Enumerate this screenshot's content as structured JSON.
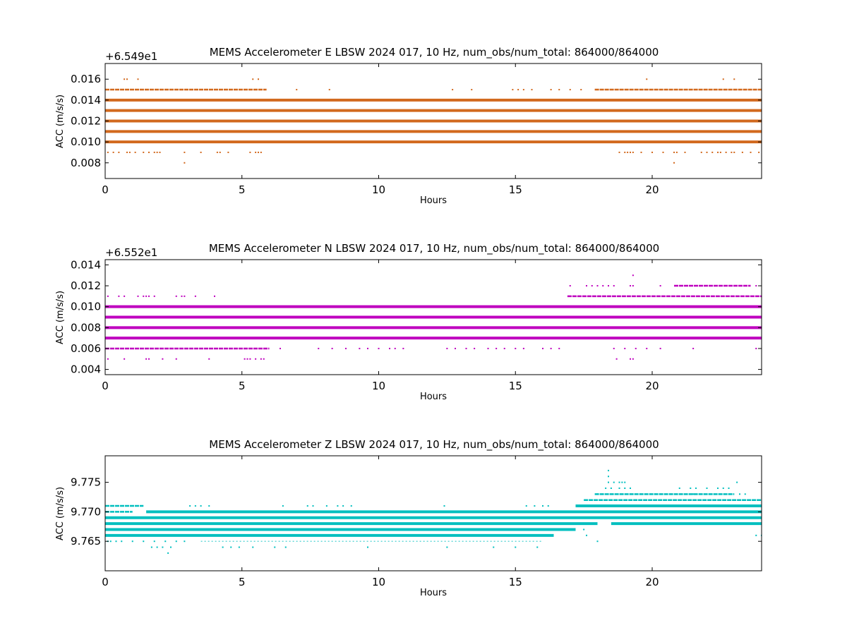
{
  "chart_data": [
    {
      "type": "scatter",
      "title": "MEMS Accelerometer E LBSW 2024 017, 10 Hz, num_obs/num_total: 864000/864000",
      "xlabel": "Hours",
      "ylabel": "ACC (m/s/s)",
      "y_offset_label": "+6.549e1",
      "y_offset": 65.49,
      "xlim": [
        0,
        24
      ],
      "ylim": [
        0.0065,
        0.0175
      ],
      "x_ticks": [
        0,
        5,
        10,
        15,
        20
      ],
      "y_ticks": [
        "0.008",
        "0.010",
        "0.012",
        "0.014",
        "0.016"
      ],
      "y_tick_values": [
        0.008,
        0.01,
        0.012,
        0.014,
        0.016
      ],
      "color": "#d2691e",
      "bands": [
        {
          "y": 0.01,
          "x": [
            0,
            24
          ],
          "density": "dense"
        },
        {
          "y": 0.011,
          "x": [
            0,
            24
          ],
          "density": "dense"
        },
        {
          "y": 0.012,
          "x": [
            0,
            24
          ],
          "density": "dense"
        },
        {
          "y": 0.013,
          "x": [
            0,
            24
          ],
          "density": "dense"
        },
        {
          "y": 0.014,
          "x": [
            0,
            24
          ],
          "density": "dense"
        },
        {
          "y": 0.015,
          "x": [
            0,
            5.9
          ],
          "density": "medium"
        },
        {
          "y": 0.015,
          "x": [
            17.9,
            24
          ],
          "density": "medium"
        }
      ],
      "points": [
        [
          0.7,
          0.016
        ],
        [
          0.8,
          0.016
        ],
        [
          1.2,
          0.016
        ],
        [
          5.4,
          0.016
        ],
        [
          5.6,
          0.016
        ],
        [
          19.8,
          0.016
        ],
        [
          22.6,
          0.016
        ],
        [
          23.0,
          0.016
        ],
        [
          7.0,
          0.015
        ],
        [
          8.2,
          0.015
        ],
        [
          12.7,
          0.015
        ],
        [
          13.4,
          0.015
        ],
        [
          14.9,
          0.015
        ],
        [
          15.1,
          0.015
        ],
        [
          15.3,
          0.015
        ],
        [
          15.6,
          0.015
        ],
        [
          16.3,
          0.015
        ],
        [
          16.6,
          0.015
        ],
        [
          17.0,
          0.015
        ],
        [
          17.4,
          0.015
        ],
        [
          0.1,
          0.009
        ],
        [
          0.3,
          0.009
        ],
        [
          0.5,
          0.009
        ],
        [
          0.8,
          0.009
        ],
        [
          0.9,
          0.009
        ],
        [
          1.1,
          0.009
        ],
        [
          1.4,
          0.009
        ],
        [
          1.6,
          0.009
        ],
        [
          1.8,
          0.009
        ],
        [
          1.9,
          0.009
        ],
        [
          2.0,
          0.009
        ],
        [
          2.9,
          0.009
        ],
        [
          3.5,
          0.009
        ],
        [
          4.1,
          0.009
        ],
        [
          4.2,
          0.009
        ],
        [
          4.5,
          0.009
        ],
        [
          5.3,
          0.009
        ],
        [
          5.5,
          0.009
        ],
        [
          5.6,
          0.009
        ],
        [
          5.7,
          0.009
        ],
        [
          18.8,
          0.009
        ],
        [
          19.0,
          0.009
        ],
        [
          19.1,
          0.009
        ],
        [
          19.2,
          0.009
        ],
        [
          19.3,
          0.009
        ],
        [
          19.6,
          0.009
        ],
        [
          20.0,
          0.009
        ],
        [
          20.4,
          0.009
        ],
        [
          20.8,
          0.009
        ],
        [
          20.9,
          0.009
        ],
        [
          21.2,
          0.009
        ],
        [
          21.8,
          0.009
        ],
        [
          22.0,
          0.009
        ],
        [
          22.2,
          0.009
        ],
        [
          22.4,
          0.009
        ],
        [
          22.5,
          0.009
        ],
        [
          22.7,
          0.009
        ],
        [
          22.9,
          0.009
        ],
        [
          23.0,
          0.009
        ],
        [
          23.3,
          0.009
        ],
        [
          23.6,
          0.009
        ],
        [
          23.9,
          0.009
        ],
        [
          2.9,
          0.008
        ],
        [
          20.8,
          0.008
        ]
      ]
    },
    {
      "type": "scatter",
      "title": "MEMS Accelerometer N LBSW 2024 017, 10 Hz, num_obs/num_total: 864000/864000",
      "xlabel": "Hours",
      "ylabel": "ACC (m/s/s)",
      "y_offset_label": "+6.552e1",
      "y_offset": 65.52,
      "xlim": [
        0,
        24
      ],
      "ylim": [
        0.0035,
        0.0145
      ],
      "x_ticks": [
        0,
        5,
        10,
        15,
        20
      ],
      "y_ticks": [
        "0.004",
        "0.006",
        "0.008",
        "0.010",
        "0.012",
        "0.014"
      ],
      "y_tick_values": [
        0.004,
        0.006,
        0.008,
        0.01,
        0.012,
        0.014
      ],
      "color": "#bf00bf",
      "bands": [
        {
          "y": 0.007,
          "x": [
            0,
            24
          ],
          "density": "dense"
        },
        {
          "y": 0.008,
          "x": [
            0,
            24
          ],
          "density": "dense"
        },
        {
          "y": 0.009,
          "x": [
            0,
            24
          ],
          "density": "dense"
        },
        {
          "y": 0.01,
          "x": [
            0,
            24
          ],
          "density": "dense"
        },
        {
          "y": 0.006,
          "x": [
            0,
            6.0
          ],
          "density": "medium"
        },
        {
          "y": 0.011,
          "x": [
            16.9,
            24
          ],
          "density": "medium"
        },
        {
          "y": 0.012,
          "x": [
            20.8,
            23.6
          ],
          "density": "medium"
        }
      ],
      "points": [
        [
          0.1,
          0.011
        ],
        [
          0.5,
          0.011
        ],
        [
          0.7,
          0.011
        ],
        [
          1.2,
          0.011
        ],
        [
          1.4,
          0.011
        ],
        [
          1.5,
          0.011
        ],
        [
          1.6,
          0.011
        ],
        [
          1.8,
          0.011
        ],
        [
          2.6,
          0.011
        ],
        [
          2.8,
          0.011
        ],
        [
          2.9,
          0.011
        ],
        [
          3.3,
          0.011
        ],
        [
          4.0,
          0.011
        ],
        [
          17.0,
          0.012
        ],
        [
          17.6,
          0.012
        ],
        [
          17.8,
          0.012
        ],
        [
          18.0,
          0.012
        ],
        [
          18.2,
          0.012
        ],
        [
          18.4,
          0.012
        ],
        [
          18.6,
          0.012
        ],
        [
          19.2,
          0.012
        ],
        [
          19.3,
          0.012
        ],
        [
          20.3,
          0.012
        ],
        [
          23.8,
          0.012
        ],
        [
          19.3,
          0.013
        ],
        [
          6.4,
          0.006
        ],
        [
          7.8,
          0.006
        ],
        [
          8.3,
          0.006
        ],
        [
          8.8,
          0.006
        ],
        [
          9.3,
          0.006
        ],
        [
          9.6,
          0.006
        ],
        [
          10.0,
          0.006
        ],
        [
          10.4,
          0.006
        ],
        [
          10.6,
          0.006
        ],
        [
          10.9,
          0.006
        ],
        [
          12.5,
          0.006
        ],
        [
          12.8,
          0.006
        ],
        [
          13.2,
          0.006
        ],
        [
          13.5,
          0.006
        ],
        [
          14.0,
          0.006
        ],
        [
          14.3,
          0.006
        ],
        [
          14.6,
          0.006
        ],
        [
          15.0,
          0.006
        ],
        [
          15.3,
          0.006
        ],
        [
          16.0,
          0.006
        ],
        [
          16.3,
          0.006
        ],
        [
          16.6,
          0.006
        ],
        [
          18.6,
          0.006
        ],
        [
          19.0,
          0.006
        ],
        [
          19.4,
          0.006
        ],
        [
          19.8,
          0.006
        ],
        [
          20.3,
          0.006
        ],
        [
          21.5,
          0.006
        ],
        [
          23.8,
          0.006
        ],
        [
          0.1,
          0.005
        ],
        [
          0.7,
          0.005
        ],
        [
          1.5,
          0.005
        ],
        [
          1.6,
          0.005
        ],
        [
          2.1,
          0.005
        ],
        [
          2.6,
          0.005
        ],
        [
          3.8,
          0.005
        ],
        [
          5.1,
          0.005
        ],
        [
          5.2,
          0.005
        ],
        [
          5.3,
          0.005
        ],
        [
          5.5,
          0.005
        ],
        [
          5.7,
          0.005
        ],
        [
          5.8,
          0.005
        ],
        [
          18.7,
          0.005
        ],
        [
          19.2,
          0.005
        ],
        [
          19.3,
          0.005
        ]
      ]
    },
    {
      "type": "scatter",
      "title": "MEMS Accelerometer Z LBSW 2024 017, 10 Hz, num_obs/num_total: 864000/864000",
      "xlabel": "Hours",
      "ylabel": "ACC (m/s/s)",
      "xlim": [
        0,
        24
      ],
      "ylim": [
        9.76,
        9.7795
      ],
      "x_ticks": [
        0,
        5,
        10,
        15,
        20
      ],
      "y_ticks": [
        "9.765",
        "9.770",
        "9.775"
      ],
      "y_tick_values": [
        9.765,
        9.77,
        9.775
      ],
      "color": "#00bfbf",
      "bands": [
        {
          "y": 9.766,
          "x": [
            0,
            16.4
          ],
          "density": "dense"
        },
        {
          "y": 9.767,
          "x": [
            0,
            17.2
          ],
          "density": "dense"
        },
        {
          "y": 9.768,
          "x": [
            0,
            18.0
          ],
          "density": "dense"
        },
        {
          "y": 9.769,
          "x": [
            0,
            24
          ],
          "density": "dense"
        },
        {
          "y": 9.77,
          "x": [
            1.5,
            24
          ],
          "density": "dense"
        },
        {
          "y": 9.771,
          "x": [
            17.2,
            24
          ],
          "density": "dense"
        },
        {
          "y": 9.772,
          "x": [
            17.5,
            24
          ],
          "density": "medium"
        },
        {
          "y": 9.773,
          "x": [
            17.9,
            23.0
          ],
          "density": "medium"
        },
        {
          "y": 9.768,
          "x": [
            18.5,
            24
          ],
          "density": "dense"
        },
        {
          "y": 9.771,
          "x": [
            0,
            1.4
          ],
          "density": "medium"
        },
        {
          "y": 9.77,
          "x": [
            0,
            1.0
          ],
          "density": "medium"
        },
        {
          "y": 9.765,
          "x": [
            3.5,
            16.0
          ],
          "density": "sparse"
        }
      ],
      "points": [
        [
          0.1,
          9.765
        ],
        [
          0.2,
          9.765
        ],
        [
          0.4,
          9.765
        ],
        [
          0.6,
          9.765
        ],
        [
          1.0,
          9.765
        ],
        [
          1.4,
          9.765
        ],
        [
          1.8,
          9.765
        ],
        [
          2.2,
          9.765
        ],
        [
          2.6,
          9.765
        ],
        [
          2.9,
          9.765
        ],
        [
          1.7,
          9.764
        ],
        [
          1.9,
          9.764
        ],
        [
          2.1,
          9.764
        ],
        [
          2.4,
          9.764
        ],
        [
          4.3,
          9.764
        ],
        [
          4.6,
          9.764
        ],
        [
          4.9,
          9.764
        ],
        [
          5.4,
          9.764
        ],
        [
          6.2,
          9.764
        ],
        [
          6.6,
          9.764
        ],
        [
          9.6,
          9.764
        ],
        [
          12.5,
          9.764
        ],
        [
          14.2,
          9.764
        ],
        [
          15.0,
          9.764
        ],
        [
          15.8,
          9.764
        ],
        [
          2.3,
          9.763
        ],
        [
          3.1,
          9.771
        ],
        [
          3.3,
          9.771
        ],
        [
          3.5,
          9.771
        ],
        [
          3.8,
          9.771
        ],
        [
          6.5,
          9.771
        ],
        [
          7.4,
          9.771
        ],
        [
          7.6,
          9.771
        ],
        [
          8.1,
          9.771
        ],
        [
          8.5,
          9.771
        ],
        [
          8.7,
          9.771
        ],
        [
          9.0,
          9.771
        ],
        [
          12.4,
          9.771
        ],
        [
          15.4,
          9.771
        ],
        [
          15.7,
          9.771
        ],
        [
          16.0,
          9.771
        ],
        [
          16.2,
          9.771
        ],
        [
          17.5,
          9.767
        ],
        [
          17.6,
          9.766
        ],
        [
          18.0,
          9.765
        ],
        [
          18.3,
          9.774
        ],
        [
          18.5,
          9.774
        ],
        [
          18.8,
          9.774
        ],
        [
          19.0,
          9.774
        ],
        [
          19.2,
          9.774
        ],
        [
          18.4,
          9.775
        ],
        [
          18.6,
          9.775
        ],
        [
          18.8,
          9.775
        ],
        [
          18.9,
          9.775
        ],
        [
          19.0,
          9.775
        ],
        [
          18.4,
          9.776
        ],
        [
          18.4,
          9.777
        ],
        [
          18.0,
          9.773
        ],
        [
          20.1,
          9.773
        ],
        [
          20.5,
          9.772
        ],
        [
          21.2,
          9.772
        ],
        [
          21.5,
          9.773
        ],
        [
          21.0,
          9.774
        ],
        [
          21.4,
          9.774
        ],
        [
          21.6,
          9.774
        ],
        [
          22.0,
          9.774
        ],
        [
          22.4,
          9.774
        ],
        [
          22.6,
          9.774
        ],
        [
          22.8,
          9.774
        ],
        [
          23.1,
          9.775
        ],
        [
          23.2,
          9.773
        ],
        [
          23.4,
          9.773
        ],
        [
          23.8,
          9.766
        ],
        [
          24.0,
          9.766
        ]
      ]
    }
  ]
}
